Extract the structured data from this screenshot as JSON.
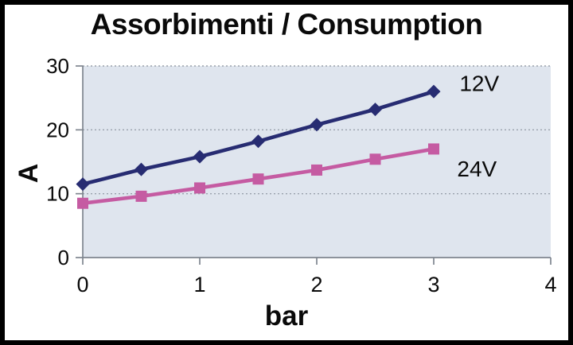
{
  "chart_data": {
    "type": "line",
    "title": "Assorbimenti / Consumption",
    "xlabel": "bar",
    "ylabel": "A",
    "x": [
      0,
      0.5,
      1,
      1.5,
      2,
      2.5,
      3
    ],
    "series": [
      {
        "name": "12V",
        "marker": "diamond",
        "color": "#272c72",
        "values": [
          11.5,
          13.8,
          15.8,
          18.2,
          20.8,
          23.2,
          26.0
        ],
        "label_at": [
          3.22,
          27.2
        ]
      },
      {
        "name": "24V",
        "marker": "square",
        "color": "#c55ba2",
        "values": [
          8.5,
          9.6,
          10.9,
          12.3,
          13.7,
          15.4,
          17.0
        ],
        "label_at": [
          3.2,
          13.8
        ]
      }
    ],
    "xlim": [
      0,
      4
    ],
    "ylim": [
      0,
      30
    ],
    "x_ticks": [
      0,
      1,
      2,
      3,
      4
    ],
    "y_ticks": [
      0,
      10,
      20,
      30
    ],
    "grid": "horizontal-dotted",
    "legend_position": "inline-right-of-lines",
    "plot_bg": "#dfe5ee",
    "grid_color": "#9aa1ac",
    "axis_color": "#7f868f",
    "text_color": "#0a0a0a",
    "frame_color": "#000000"
  }
}
